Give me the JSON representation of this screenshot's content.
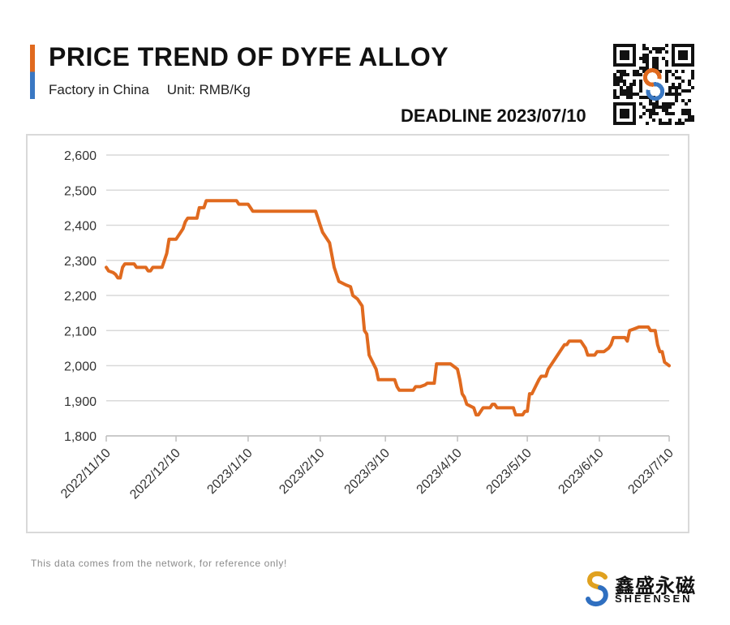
{
  "header": {
    "title": "PRICE TREND OF DYFE ALLOY",
    "subtitle_left": "Factory in China",
    "subtitle_right": "Unit: RMB/Kg",
    "deadline": "DEADLINE 2023/07/10"
  },
  "footer": {
    "note": "This data comes from the network, for reference only!",
    "brand_cn": "鑫盛永磁",
    "brand_en": "SHEENSEN"
  },
  "colors": {
    "line": "#e06a1f",
    "accent_orange": "#e06a1f",
    "accent_blue": "#3a78c3",
    "grid": "#d9d9d9"
  },
  "chart_data": {
    "type": "line",
    "title": "PRICE TREND OF DYFE ALLOY",
    "xlabel": "",
    "ylabel": "",
    "ylim": [
      1800,
      2600
    ],
    "yticks": [
      1800,
      1900,
      2000,
      2100,
      2200,
      2300,
      2400,
      2500,
      2600
    ],
    "ytick_labels": [
      "1,800",
      "1,900",
      "2,000",
      "2,100",
      "2,200",
      "2,300",
      "2,400",
      "2,500",
      "2,600"
    ],
    "xlim": [
      "2022/11/10",
      "2023/7/10"
    ],
    "xticks": [
      "2022/11/10",
      "2022/12/10",
      "2023/1/10",
      "2023/2/10",
      "2023/3/10",
      "2023/4/10",
      "2023/5/10",
      "2023/6/10",
      "2023/7/10"
    ],
    "grid": "horizontal",
    "legend": "none",
    "series": [
      {
        "points": [
          [
            "2022/11/10",
            2280
          ],
          [
            "2022/11/11",
            2270
          ],
          [
            "2022/11/13",
            2265
          ],
          [
            "2022/11/14",
            2260
          ],
          [
            "2022/11/15",
            2250
          ],
          [
            "2022/11/16",
            2250
          ],
          [
            "2022/11/17",
            2280
          ],
          [
            "2022/11/18",
            2290
          ],
          [
            "2022/11/22",
            2290
          ],
          [
            "2022/11/23",
            2280
          ],
          [
            "2022/11/27",
            2280
          ],
          [
            "2022/11/28",
            2270
          ],
          [
            "2022/11/29",
            2270
          ],
          [
            "2022/11/30",
            2280
          ],
          [
            "2022/12/4",
            2280
          ],
          [
            "2022/12/5",
            2300
          ],
          [
            "2022/12/6",
            2320
          ],
          [
            "2022/12/7",
            2360
          ],
          [
            "2022/12/10",
            2360
          ],
          [
            "2022/12/12",
            2380
          ],
          [
            "2022/12/13",
            2390
          ],
          [
            "2022/12/14",
            2410
          ],
          [
            "2022/12/15",
            2420
          ],
          [
            "2022/12/19",
            2420
          ],
          [
            "2022/12/20",
            2450
          ],
          [
            "2022/12/22",
            2450
          ],
          [
            "2022/12/23",
            2470
          ],
          [
            "2023/1/5",
            2470
          ],
          [
            "2023/1/6",
            2460
          ],
          [
            "2023/1/10",
            2460
          ],
          [
            "2023/1/11",
            2450
          ],
          [
            "2023/1/12",
            2440
          ],
          [
            "2023/2/8",
            2440
          ],
          [
            "2023/2/9",
            2420
          ],
          [
            "2023/2/10",
            2400
          ],
          [
            "2023/2/11",
            2380
          ],
          [
            "2023/2/14",
            2350
          ],
          [
            "2023/2/16",
            2280
          ],
          [
            "2023/2/18",
            2240
          ],
          [
            "2023/2/21",
            2230
          ],
          [
            "2023/2/23",
            2225
          ],
          [
            "2023/2/24",
            2200
          ],
          [
            "2023/2/26",
            2190
          ],
          [
            "2023/2/28",
            2170
          ],
          [
            "2023/3/1",
            2100
          ],
          [
            "2023/3/2",
            2090
          ],
          [
            "2023/3/3",
            2030
          ],
          [
            "2023/3/6",
            1990
          ],
          [
            "2023/3/7",
            1960
          ],
          [
            "2023/3/14",
            1960
          ],
          [
            "2023/3/15",
            1940
          ],
          [
            "2023/3/16",
            1930
          ],
          [
            "2023/3/22",
            1930
          ],
          [
            "2023/3/23",
            1940
          ],
          [
            "2023/3/25",
            1940
          ],
          [
            "2023/3/27",
            1945
          ],
          [
            "2023/3/28",
            1950
          ],
          [
            "2023/3/31",
            1950
          ],
          [
            "2023/4/1",
            2005
          ],
          [
            "2023/4/7",
            2005
          ],
          [
            "2023/4/8",
            2000
          ],
          [
            "2023/4/10",
            1990
          ],
          [
            "2023/4/11",
            1960
          ],
          [
            "2023/4/12",
            1920
          ],
          [
            "2023/4/13",
            1910
          ],
          [
            "2023/4/14",
            1890
          ],
          [
            "2023/4/17",
            1880
          ],
          [
            "2023/4/18",
            1860
          ],
          [
            "2023/4/19",
            1860
          ],
          [
            "2023/4/21",
            1880
          ],
          [
            "2023/4/24",
            1880
          ],
          [
            "2023/4/25",
            1890
          ],
          [
            "2023/4/26",
            1890
          ],
          [
            "2023/4/27",
            1880
          ],
          [
            "2023/5/4",
            1880
          ],
          [
            "2023/5/5",
            1860
          ],
          [
            "2023/5/8",
            1860
          ],
          [
            "2023/5/9",
            1870
          ],
          [
            "2023/5/10",
            1870
          ],
          [
            "2023/5/11",
            1920
          ],
          [
            "2023/5/12",
            1920
          ],
          [
            "2023/5/15",
            1960
          ],
          [
            "2023/5/16",
            1970
          ],
          [
            "2023/5/18",
            1970
          ],
          [
            "2023/5/19",
            1990
          ],
          [
            "2023/5/22",
            2020
          ],
          [
            "2023/5/25",
            2050
          ],
          [
            "2023/5/26",
            2060
          ],
          [
            "2023/5/27",
            2060
          ],
          [
            "2023/5/28",
            2070
          ],
          [
            "2023/6/2",
            2070
          ],
          [
            "2023/6/4",
            2050
          ],
          [
            "2023/6/5",
            2030
          ],
          [
            "2023/6/8",
            2030
          ],
          [
            "2023/6/9",
            2040
          ],
          [
            "2023/6/12",
            2040
          ],
          [
            "2023/6/14",
            2050
          ],
          [
            "2023/6/15",
            2060
          ],
          [
            "2023/6/16",
            2080
          ],
          [
            "2023/6/21",
            2080
          ],
          [
            "2023/6/22",
            2070
          ],
          [
            "2023/6/23",
            2100
          ],
          [
            "2023/6/25",
            2105
          ],
          [
            "2023/6/27",
            2110
          ],
          [
            "2023/7/1",
            2110
          ],
          [
            "2023/7/2",
            2100
          ],
          [
            "2023/7/4",
            2100
          ],
          [
            "2023/7/5",
            2060
          ],
          [
            "2023/7/6",
            2040
          ],
          [
            "2023/7/7",
            2040
          ],
          [
            "2023/7/8",
            2010
          ],
          [
            "2023/7/10",
            2000
          ]
        ]
      }
    ]
  }
}
